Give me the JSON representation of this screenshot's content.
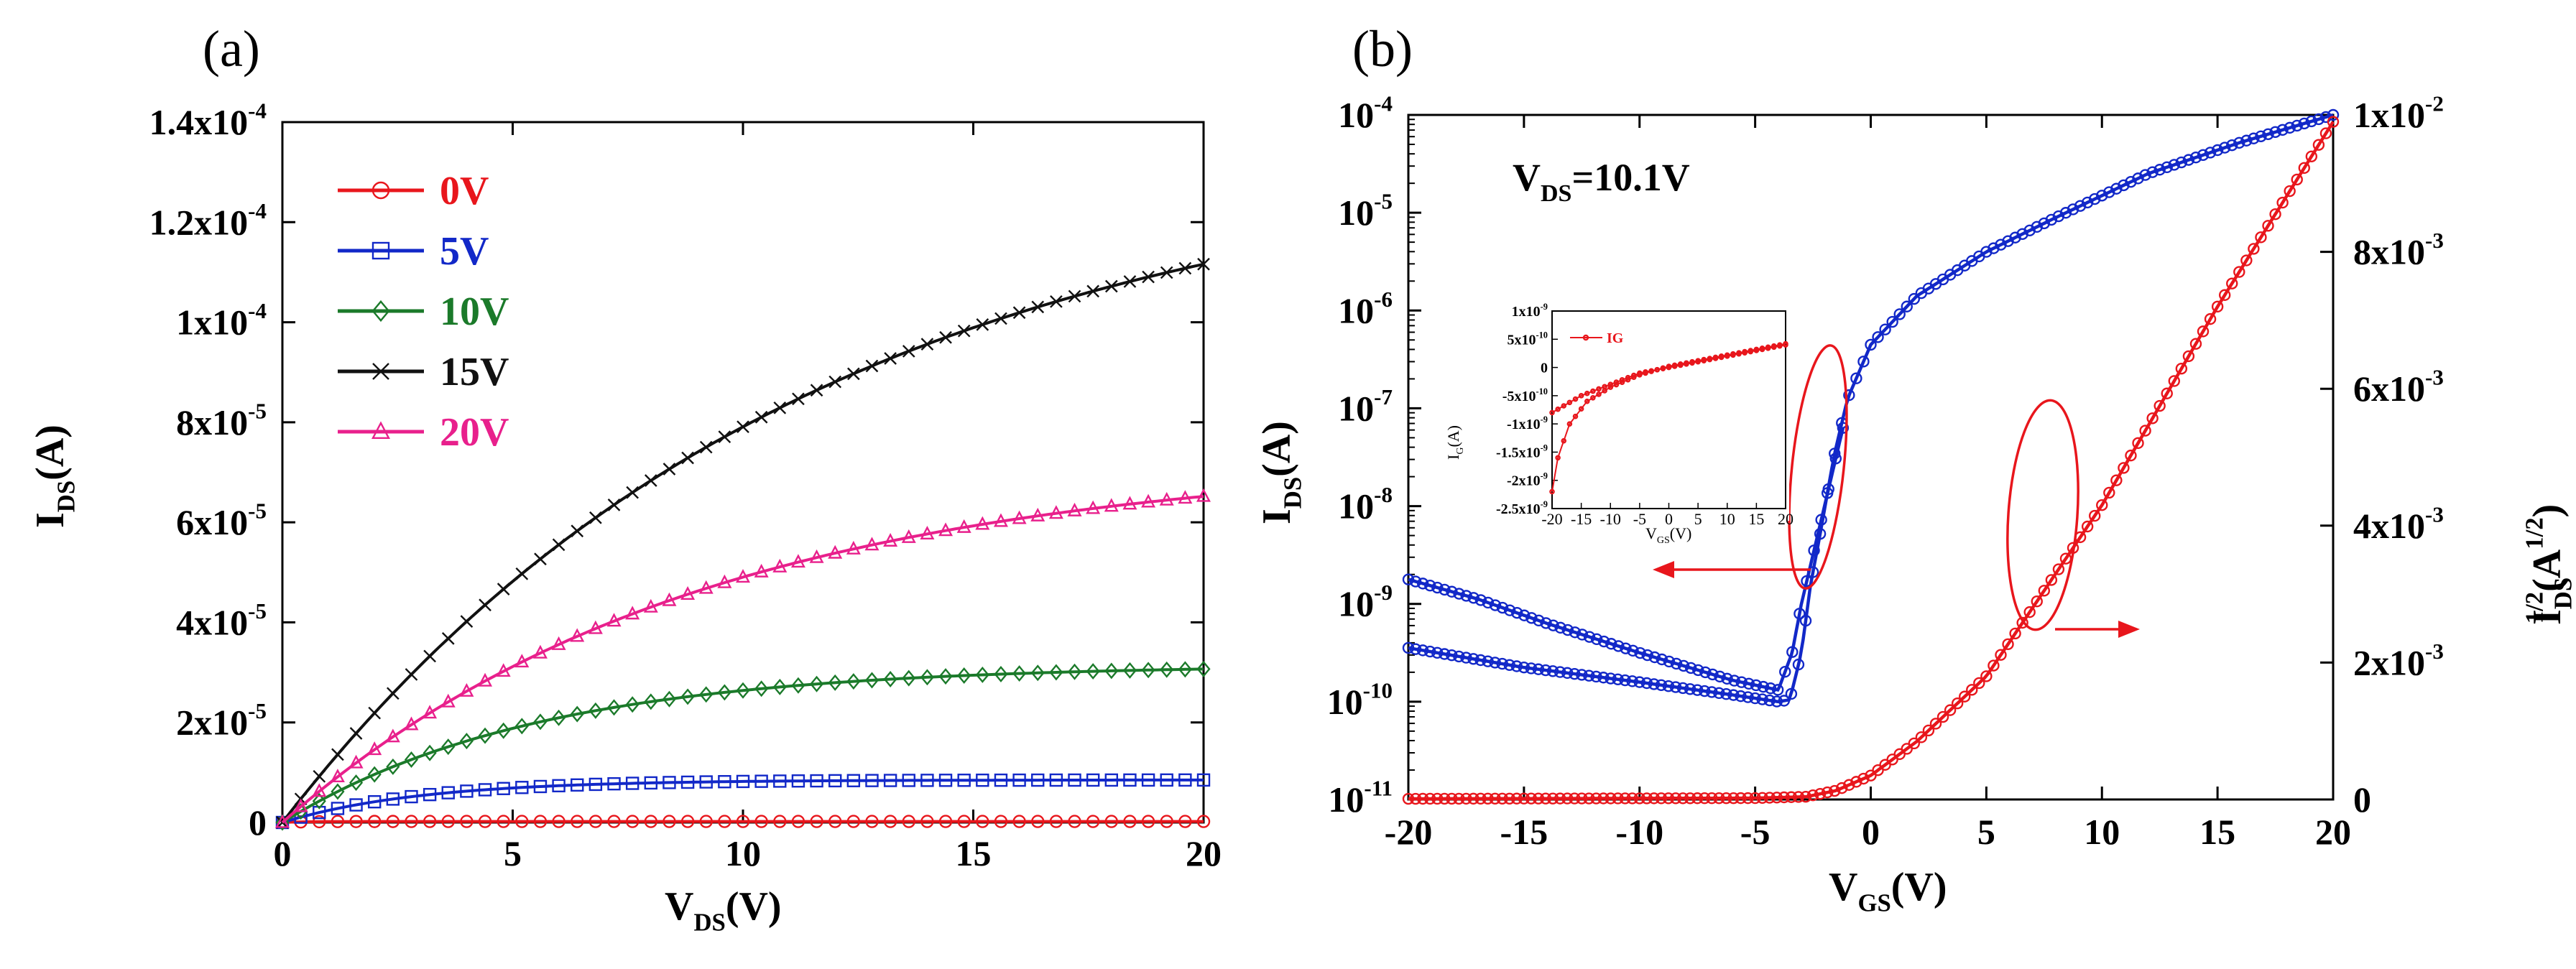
{
  "panel_labels": {
    "a": "(a)",
    "b": "(b)"
  },
  "colors": {
    "red": "#e8161c",
    "blue": "#1228c8",
    "green": "#1b7a2a",
    "black": "#111111",
    "pink": "#e8208c"
  },
  "chart_data": [
    {
      "id": "a",
      "type": "line",
      "title": "",
      "xlabel": {
        "main": "V",
        "sub": "DS",
        "unit": "(V)"
      },
      "ylabel": {
        "main": "I",
        "sub": "DS",
        "unit": "(A)"
      },
      "xlim": [
        0,
        20
      ],
      "ylim": [
        0,
        0.00014
      ],
      "xticks": [
        {
          "v": 0,
          "label": "0"
        },
        {
          "v": 5,
          "label": "5"
        },
        {
          "v": 10,
          "label": "10"
        },
        {
          "v": 15,
          "label": "15"
        },
        {
          "v": 20,
          "label": "20"
        }
      ],
      "yticks": [
        {
          "v": 0,
          "mant": "0",
          "exp": ""
        },
        {
          "v": 2e-05,
          "mant": "2x10",
          "exp": "-5"
        },
        {
          "v": 4e-05,
          "mant": "4x10",
          "exp": "-5"
        },
        {
          "v": 6e-05,
          "mant": "6x10",
          "exp": "-5"
        },
        {
          "v": 8e-05,
          "mant": "8x10",
          "exp": "-5"
        },
        {
          "v": 0.0001,
          "mant": "1x10",
          "exp": "-4"
        },
        {
          "v": 0.00012,
          "mant": "1.2x10",
          "exp": "-4"
        },
        {
          "v": 0.00014,
          "mant": "1.4x10",
          "exp": "-4"
        }
      ],
      "legend_position": "top-left",
      "series": [
        {
          "name": "0V",
          "color": "#e8161c",
          "marker": "circle",
          "vsat": 1,
          "isat": 2e-07
        },
        {
          "name": "5V",
          "color": "#1228c8",
          "marker": "square",
          "vsat": 6,
          "isat": 8.5e-06
        },
        {
          "name": "10V",
          "color": "#1b7a2a",
          "marker": "diamond",
          "vsat": 11,
          "isat": 3.15e-05
        },
        {
          "name": "15V",
          "color": "#111111",
          "marker": "x",
          "vsat": 22.5,
          "isat": 0.0001343
        },
        {
          "name": "20V",
          "color": "#e8208c",
          "marker": "triangle",
          "vsat": 18,
          "isat": 7.31e-05
        }
      ]
    },
    {
      "id": "b",
      "type": "line",
      "annotation": {
        "main": "V",
        "sub": "DS",
        "rest": "=10.1V"
      },
      "xlabel": {
        "main": "V",
        "sub": "GS",
        "unit": "(V)"
      },
      "ylabel_left": {
        "main": "I",
        "sub": "DS",
        "unit": "(A)"
      },
      "ylabel_right": {
        "main": "I",
        "sub": "DS",
        "sup": "1/2",
        "unit": "(A",
        "unit_sup": "1/2",
        "close": ")"
      },
      "xlim": [
        -20,
        20
      ],
      "ylim_left_log10": [
        -11,
        -4
      ],
      "ylim_right": [
        0,
        0.01
      ],
      "xticks": [
        {
          "v": -20,
          "label": "-20"
        },
        {
          "v": -15,
          "label": "-15"
        },
        {
          "v": -10,
          "label": "-10"
        },
        {
          "v": -5,
          "label": "-5"
        },
        {
          "v": 0,
          "label": "0"
        },
        {
          "v": 5,
          "label": "5"
        },
        {
          "v": 10,
          "label": "10"
        },
        {
          "v": 15,
          "label": "15"
        },
        {
          "v": 20,
          "label": "20"
        }
      ],
      "yticks_left": [
        {
          "e": -4,
          "mant": "10",
          "exp": "-4"
        },
        {
          "e": -5,
          "mant": "10",
          "exp": "-5"
        },
        {
          "e": -6,
          "mant": "10",
          "exp": "-6"
        },
        {
          "e": -7,
          "mant": "10",
          "exp": "-7"
        },
        {
          "e": -8,
          "mant": "10",
          "exp": "-8"
        },
        {
          "e": -9,
          "mant": "10",
          "exp": "-9"
        },
        {
          "e": -10,
          "mant": "10",
          "exp": "-10"
        },
        {
          "e": -11,
          "mant": "10",
          "exp": "-11"
        }
      ],
      "yticks_right": [
        {
          "v": 0,
          "mant": "0",
          "exp": ""
        },
        {
          "v": 0.002,
          "mant": "2x10",
          "exp": "-3"
        },
        {
          "v": 0.004,
          "mant": "4x10",
          "exp": "-3"
        },
        {
          "v": 0.006,
          "mant": "6x10",
          "exp": "-3"
        },
        {
          "v": 0.008,
          "mant": "8x10",
          "exp": "-3"
        },
        {
          "v": 0.01,
          "mant": "1x10",
          "exp": "-2"
        }
      ],
      "series": [
        {
          "name": "I_DS forward (log)",
          "color": "#1228c8",
          "axis": "left",
          "points": [
            [
              -20,
              -9.45
            ],
            [
              -15,
              -9.65
            ],
            [
              -10,
              -9.8
            ],
            [
              -6,
              -9.93
            ],
            [
              -4,
              -10.0
            ],
            [
              -3.5,
              -9.98
            ],
            [
              -3,
              -9.5
            ],
            [
              -2.6,
              -8.8
            ],
            [
              -2.2,
              -8.3
            ],
            [
              -1.6,
              -7.5
            ],
            [
              -1.0,
              -6.9
            ],
            [
              0,
              -6.35
            ],
            [
              2,
              -5.85
            ],
            [
              5,
              -5.4
            ],
            [
              8,
              -5.05
            ],
            [
              12,
              -4.6
            ],
            [
              16,
              -4.28
            ],
            [
              20,
              -4.0
            ]
          ]
        },
        {
          "name": "I_DS reverse (log)",
          "color": "#1228c8",
          "axis": "left",
          "points": [
            [
              -20,
              -8.75
            ],
            [
              -17,
              -8.95
            ],
            [
              -14,
              -9.2
            ],
            [
              -10,
              -9.5
            ],
            [
              -6,
              -9.78
            ],
            [
              -4,
              -9.88
            ],
            [
              -3.4,
              -9.5
            ],
            [
              -3,
              -9.0
            ],
            [
              -2.5,
              -8.5
            ],
            [
              -1.8,
              -7.8
            ],
            [
              -1.2,
              -7.2
            ]
          ]
        },
        {
          "name": "I_DS^1/2",
          "color": "#e8161c",
          "axis": "right",
          "points": [
            [
              -20,
              1e-05
            ],
            [
              -5,
              2e-05
            ],
            [
              -2.8,
              4e-05
            ],
            [
              -1.5,
              0.00013
            ],
            [
              0,
              0.00035
            ],
            [
              2,
              0.00085
            ],
            [
              5,
              0.0018
            ],
            [
              10,
              0.0043
            ],
            [
              15,
              0.0072
            ],
            [
              20,
              0.0099
            ]
          ]
        }
      ],
      "inset": {
        "type": "line",
        "xlabel": {
          "main": "V",
          "sub": "GS",
          "unit": "(V)"
        },
        "ylabel": {
          "main": "I",
          "sub": "G",
          "unit": "(A)"
        },
        "xlim": [
          -20,
          20
        ],
        "ylim": [
          -2.5e-09,
          1e-09
        ],
        "legend": "IG",
        "legend_position": "top-left",
        "xticks": [
          {
            "v": -20,
            "label": "-20"
          },
          {
            "v": -15,
            "label": "-15"
          },
          {
            "v": -10,
            "label": "-10"
          },
          {
            "v": -5,
            "label": "-5"
          },
          {
            "v": 0,
            "label": "0"
          },
          {
            "v": 5,
            "label": "5"
          },
          {
            "v": 10,
            "label": "10"
          },
          {
            "v": 15,
            "label": "15"
          },
          {
            "v": 20,
            "label": "20"
          }
        ],
        "yticks": [
          {
            "v": 1e-09,
            "mant": "1x10",
            "exp": "-9"
          },
          {
            "v": 5e-10,
            "mant": "5x10",
            "exp": "-10"
          },
          {
            "v": 0,
            "mant": "0",
            "exp": ""
          },
          {
            "v": -5e-10,
            "mant": "-5x10",
            "exp": "-10"
          },
          {
            "v": -1e-09,
            "mant": "-1x10",
            "exp": "-9"
          },
          {
            "v": -1.5e-09,
            "mant": "-1.5x10",
            "exp": "-9"
          },
          {
            "v": -2e-09,
            "mant": "-2x10",
            "exp": "-9"
          },
          {
            "v": -2.5e-09,
            "mant": "-2.5x10",
            "exp": "-9"
          }
        ],
        "series": [
          {
            "name": "IG forward",
            "color": "#e8161c",
            "points": [
              [
                -20,
                -8e-10
              ],
              [
                -15,
                -5e-10
              ],
              [
                -10,
                -3e-10
              ],
              [
                -5,
                -1e-10
              ],
              [
                0,
                0
              ],
              [
                5,
                1e-10
              ],
              [
                10,
                2e-10
              ],
              [
                15,
                3e-10
              ],
              [
                20,
                4e-10
              ]
            ]
          },
          {
            "name": "IG reverse",
            "color": "#e8161c",
            "points": [
              [
                -20,
                -2.2e-09
              ],
              [
                -19,
                -1.6e-09
              ],
              [
                -17,
                -1e-09
              ],
              [
                -14,
                -6e-10
              ],
              [
                -10,
                -3.5e-10
              ],
              [
                -5,
                -1.3e-10
              ],
              [
                0,
                2e-11
              ],
              [
                5,
                1.2e-10
              ],
              [
                10,
                2.2e-10
              ],
              [
                15,
                3.2e-10
              ],
              [
                20,
                4.2e-10
              ]
            ]
          }
        ]
      }
    }
  ]
}
